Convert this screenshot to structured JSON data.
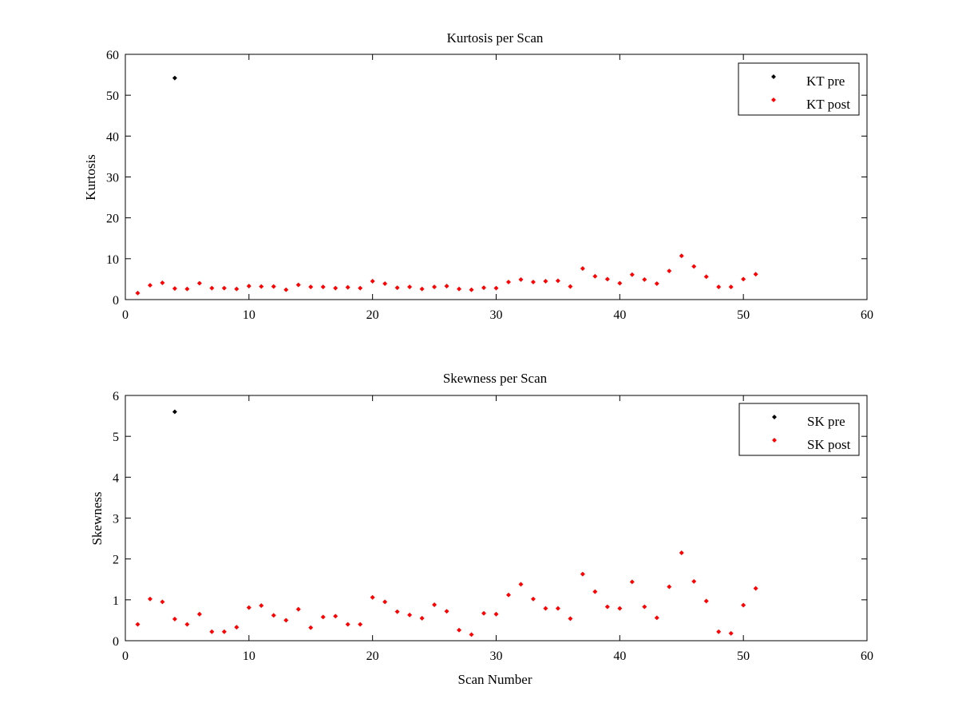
{
  "colors": {
    "pre": "#000000",
    "post": "#ff0000",
    "axes": "#000000",
    "background": "#ffffff"
  },
  "chart_data": [
    {
      "type": "scatter",
      "title": "Kurtosis per Scan",
      "xlabel": "",
      "ylabel": "Kurtosis",
      "xlim": [
        0,
        60
      ],
      "ylim": [
        0,
        60
      ],
      "xticks": [
        0,
        10,
        20,
        30,
        40,
        50,
        60
      ],
      "yticks": [
        0,
        10,
        20,
        30,
        40,
        50,
        60
      ],
      "grid": false,
      "legend_position": "top-right",
      "series": [
        {
          "name": "KT pre",
          "color": "#000000",
          "x": [
            4
          ],
          "y": [
            54.2
          ]
        },
        {
          "name": "KT post",
          "color": "#ff0000",
          "x": [
            1,
            2,
            3,
            4,
            5,
            6,
            7,
            8,
            9,
            10,
            11,
            12,
            13,
            14,
            15,
            16,
            17,
            18,
            19,
            20,
            21,
            22,
            23,
            24,
            25,
            26,
            27,
            28,
            29,
            30,
            31,
            32,
            33,
            34,
            35,
            36,
            37,
            38,
            39,
            40,
            41,
            42,
            43,
            44,
            45,
            46,
            47,
            48,
            49,
            50,
            51
          ],
          "y": [
            1.6,
            3.5,
            4.1,
            2.7,
            2.6,
            4.0,
            2.8,
            2.8,
            2.6,
            3.3,
            3.2,
            3.2,
            2.4,
            3.6,
            3.1,
            3.1,
            2.8,
            3.0,
            2.8,
            4.5,
            3.9,
            2.9,
            3.1,
            2.6,
            3.1,
            3.3,
            2.6,
            2.4,
            2.9,
            2.8,
            4.3,
            4.9,
            4.3,
            4.5,
            4.6,
            3.2,
            7.6,
            5.7,
            5.0,
            4.0,
            6.1,
            4.9,
            3.9,
            7.0,
            10.7,
            8.1,
            5.6,
            3.1,
            3.1,
            5.0,
            6.2
          ]
        }
      ]
    },
    {
      "type": "scatter",
      "title": "Skewness per Scan",
      "xlabel": "Scan Number",
      "ylabel": "Skewness",
      "xlim": [
        0,
        60
      ],
      "ylim": [
        0,
        6
      ],
      "xticks": [
        0,
        10,
        20,
        30,
        40,
        50,
        60
      ],
      "yticks": [
        0,
        1,
        2,
        3,
        4,
        5,
        6
      ],
      "grid": false,
      "legend_position": "top-right",
      "series": [
        {
          "name": "SK pre",
          "color": "#000000",
          "x": [
            4
          ],
          "y": [
            5.6
          ]
        },
        {
          "name": "SK post",
          "color": "#ff0000",
          "x": [
            1,
            2,
            3,
            4,
            5,
            6,
            7,
            8,
            9,
            10,
            11,
            12,
            13,
            14,
            15,
            16,
            17,
            18,
            19,
            20,
            21,
            22,
            23,
            24,
            25,
            26,
            27,
            28,
            29,
            30,
            31,
            32,
            33,
            34,
            35,
            36,
            37,
            38,
            39,
            40,
            41,
            42,
            43,
            44,
            45,
            46,
            47,
            48,
            49,
            50,
            51
          ],
          "y": [
            0.4,
            1.02,
            0.95,
            0.53,
            0.4,
            0.65,
            0.22,
            0.22,
            0.33,
            0.81,
            0.86,
            0.62,
            0.5,
            0.77,
            0.32,
            0.58,
            0.6,
            0.4,
            0.4,
            1.06,
            0.95,
            0.71,
            0.63,
            0.55,
            0.88,
            0.72,
            0.26,
            0.15,
            0.67,
            0.65,
            1.12,
            1.38,
            1.02,
            0.79,
            0.79,
            0.54,
            1.63,
            1.2,
            0.83,
            0.79,
            1.44,
            0.83,
            0.56,
            1.32,
            2.15,
            1.45,
            0.97,
            0.22,
            0.18,
            0.87,
            1.28
          ]
        }
      ]
    }
  ]
}
